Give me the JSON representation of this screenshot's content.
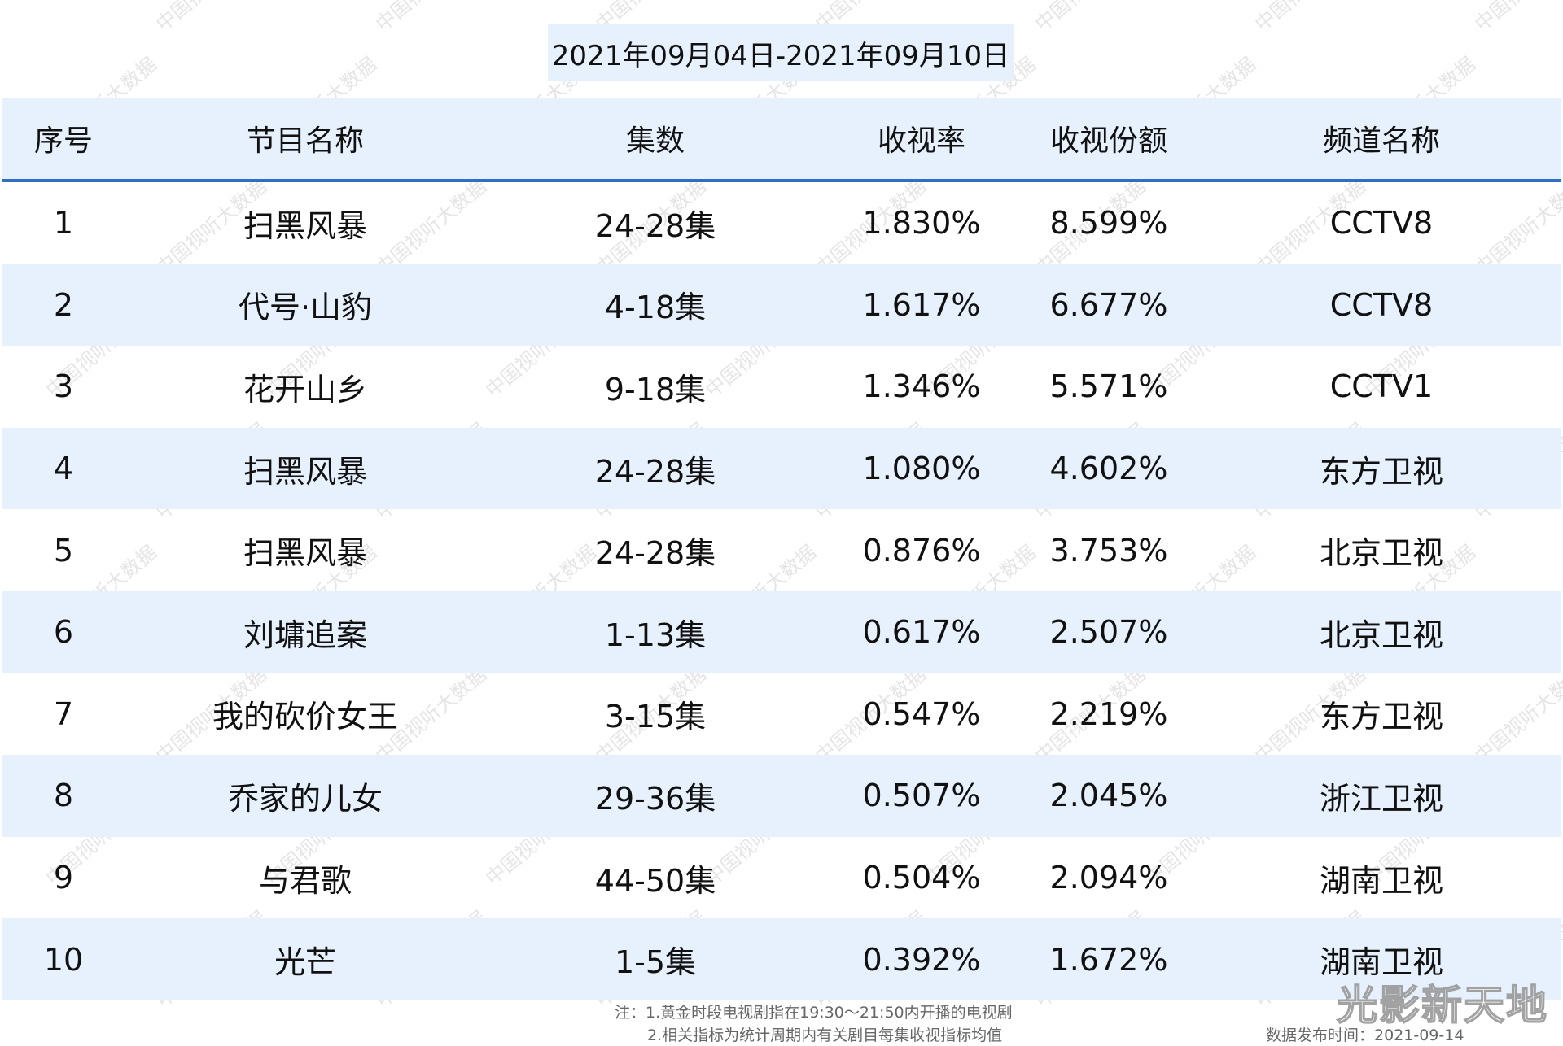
{
  "date_range": "2021年09月04日-2021年09月10日",
  "columns": [
    "序号",
    "节目名称",
    "集数",
    "收视率",
    "收视份额",
    "频道名称"
  ],
  "rows": [
    [
      "1",
      "扫黑风暴",
      "24-28集",
      "1.830%",
      "8.599%",
      "CCTV8"
    ],
    [
      "2",
      "代号·山豹",
      "4-18集",
      "1.617%",
      "6.677%",
      "CCTV8"
    ],
    [
      "3",
      "花开山乡",
      "9-18集",
      "1.346%",
      "5.571%",
      "CCTV1"
    ],
    [
      "4",
      "扫黑风暴",
      "24-28集",
      "1.080%",
      "4.602%",
      "东方卫视"
    ],
    [
      "5",
      "扫黑风暴",
      "24-28集",
      "0.876%",
      "3.753%",
      "北京卫视"
    ],
    [
      "6",
      "刘墉追案",
      "1-13集",
      "0.617%",
      "2.507%",
      "北京卫视"
    ],
    [
      "7",
      "我的砍价女王",
      "3-15集",
      "0.547%",
      "2.219%",
      "东方卫视"
    ],
    [
      "8",
      "乔家的儿女",
      "29-36集",
      "0.507%",
      "2.045%",
      "浙江卫视"
    ],
    [
      "9",
      "与君歌",
      "44-50集",
      "0.504%",
      "2.094%",
      "湖南卫视"
    ],
    [
      "10",
      "光芒",
      "1-5集",
      "0.392%",
      "1.672%",
      "湖南卫视"
    ]
  ],
  "notes": {
    "line1": "注：1.黄金时段电视剧指在19:30～21:50内开播的电视剧",
    "line2": "2.相关指标为统计周期内有关剧目每集收视指标均值",
    "release": "数据发布时间：2021-09-14"
  },
  "watermark": "中国视听大数据",
  "logo": "光影新天地",
  "colors": {
    "header_bg": "#e6f1fd",
    "header_rule": "#2d6fc6"
  }
}
